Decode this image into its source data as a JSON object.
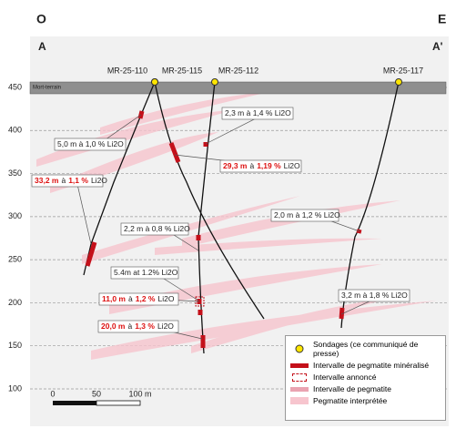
{
  "header": {
    "west": "O",
    "east": "E",
    "section_start": "A",
    "section_end": "A'"
  },
  "elevation_ticks": [
    450,
    400,
    350,
    300,
    250,
    200,
    150,
    100
  ],
  "overburden": "Mort-terrain",
  "holes": [
    "MR-25-110",
    "MR-25-115",
    "MR-25-112",
    "MR-25-117"
  ],
  "callouts": [
    {
      "parts": [
        "5,0 m à 1,0 % Li2O"
      ]
    },
    {
      "parts": [
        "2,3 m à 1,4 % Li2O"
      ]
    },
    {
      "parts": [
        "29,3 m",
        "à",
        "1,19 %",
        "Li2O"
      ]
    },
    {
      "parts": [
        "33,2 m",
        "à",
        "1,1 %",
        "Li2O"
      ]
    },
    {
      "parts": [
        "2,0 m à 1,2 % Li2O"
      ]
    },
    {
      "parts": [
        "2,2 m à 0,8 % Li2O"
      ]
    },
    {
      "parts": [
        "5.4m at 1.2% Li2O"
      ]
    },
    {
      "parts": [
        "11,0 m",
        "à",
        "1,2 %",
        "Li2O"
      ]
    },
    {
      "parts": [
        "3,2 m à 1,8 % Li2O"
      ]
    },
    {
      "parts": [
        "20,0 m",
        "à",
        "1,3 %",
        "Li2O"
      ]
    }
  ],
  "scale": [
    "0",
    "50",
    "100 m"
  ],
  "legend": [
    "Sondages (ce communiqué de presse)",
    "Intervalle de pegmatite minéralisé",
    "Intervalle annoncé",
    "Intervalle de pegmatite",
    "Pegmatite interprétée"
  ]
}
